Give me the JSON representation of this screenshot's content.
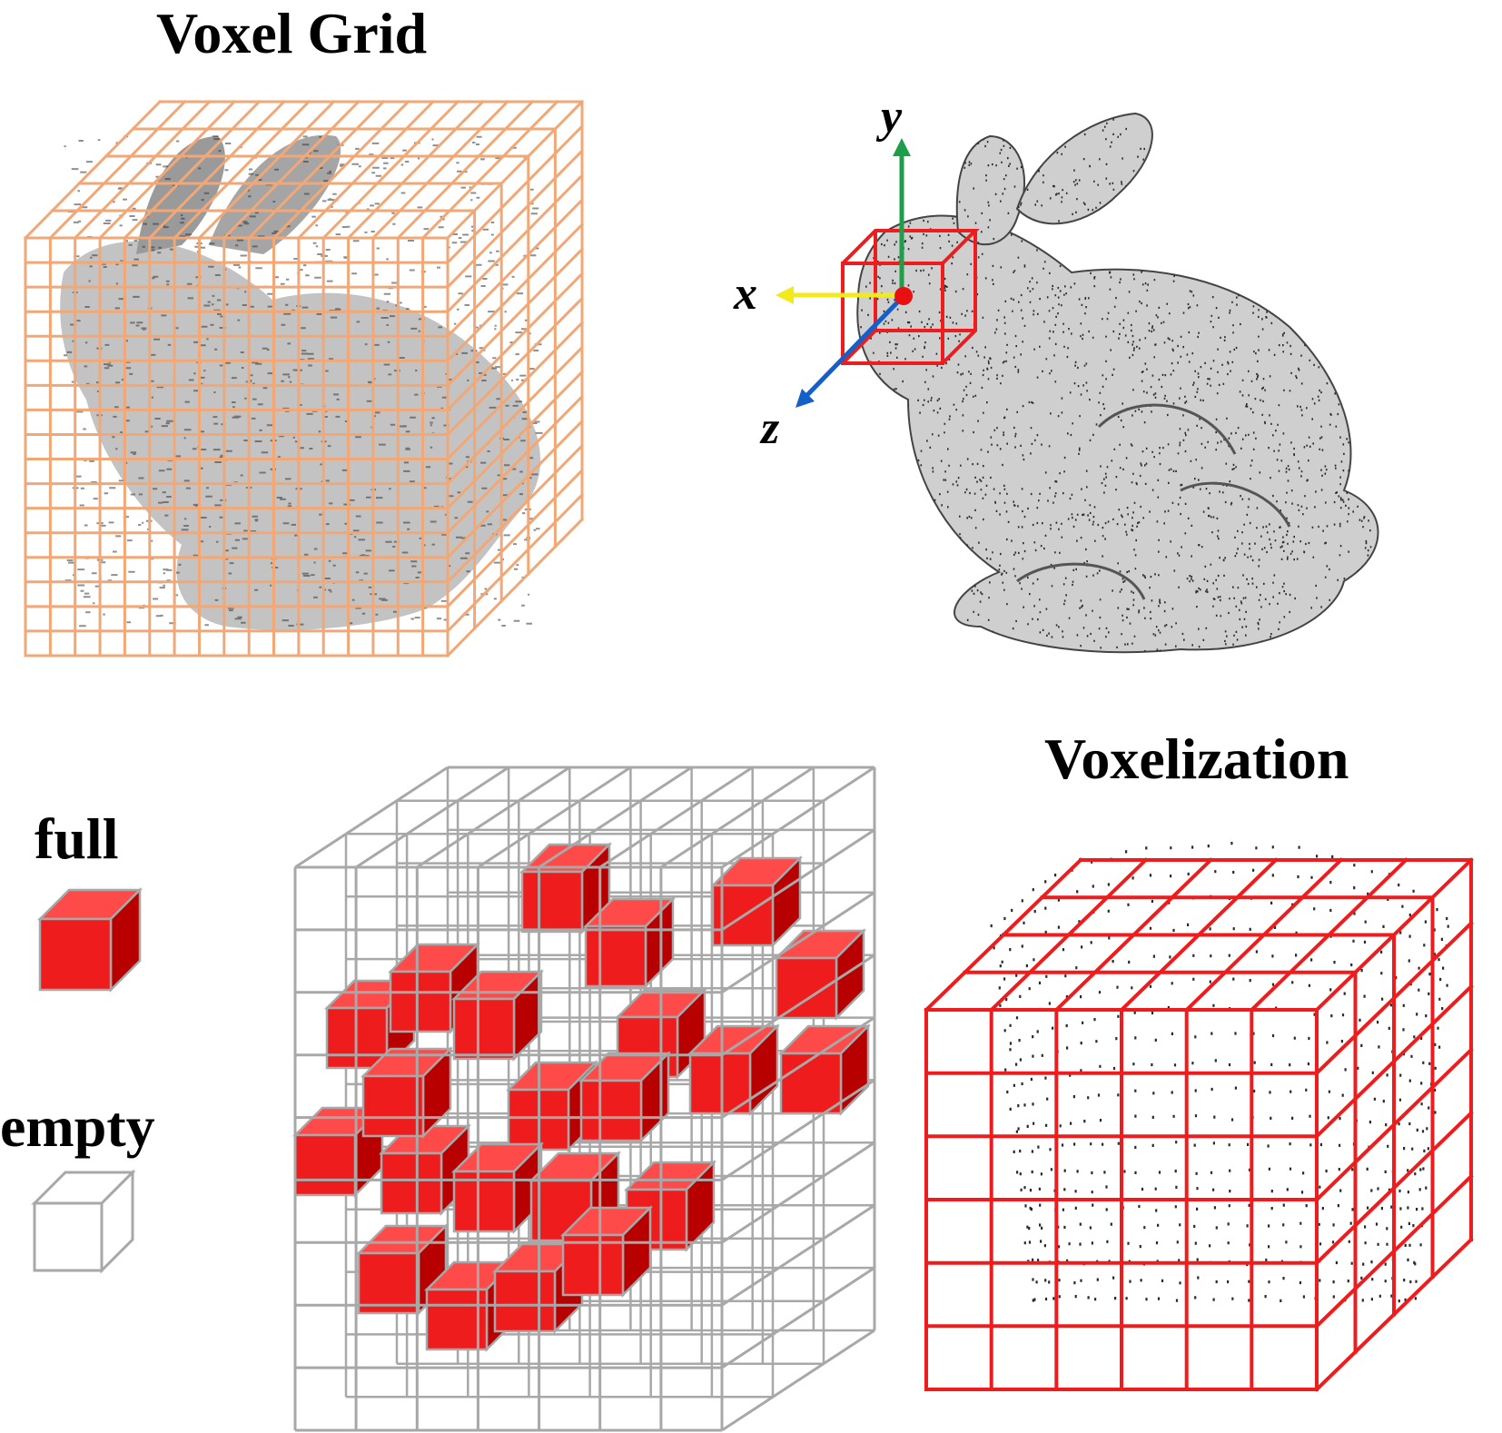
{
  "titles": {
    "voxel_grid": "Voxel Grid",
    "voxelization": "Voxelization"
  },
  "legend": {
    "full": "full",
    "empty": "empty"
  },
  "axes": {
    "x": "x",
    "y": "y",
    "z": "z"
  },
  "colors": {
    "grid_orange": "#f2a876",
    "voxel_red": "#ee1c1c",
    "voxel_red_side": "#b80000",
    "voxel_red_top": "#ff4a4a",
    "empty_grey": "#a8a8a8",
    "axis_x": "#f2ea1c",
    "axis_y": "#1e9e4a",
    "axis_z": "#1460c8",
    "origin": "#e81010",
    "point_cloud": "#2a2a2a"
  }
}
